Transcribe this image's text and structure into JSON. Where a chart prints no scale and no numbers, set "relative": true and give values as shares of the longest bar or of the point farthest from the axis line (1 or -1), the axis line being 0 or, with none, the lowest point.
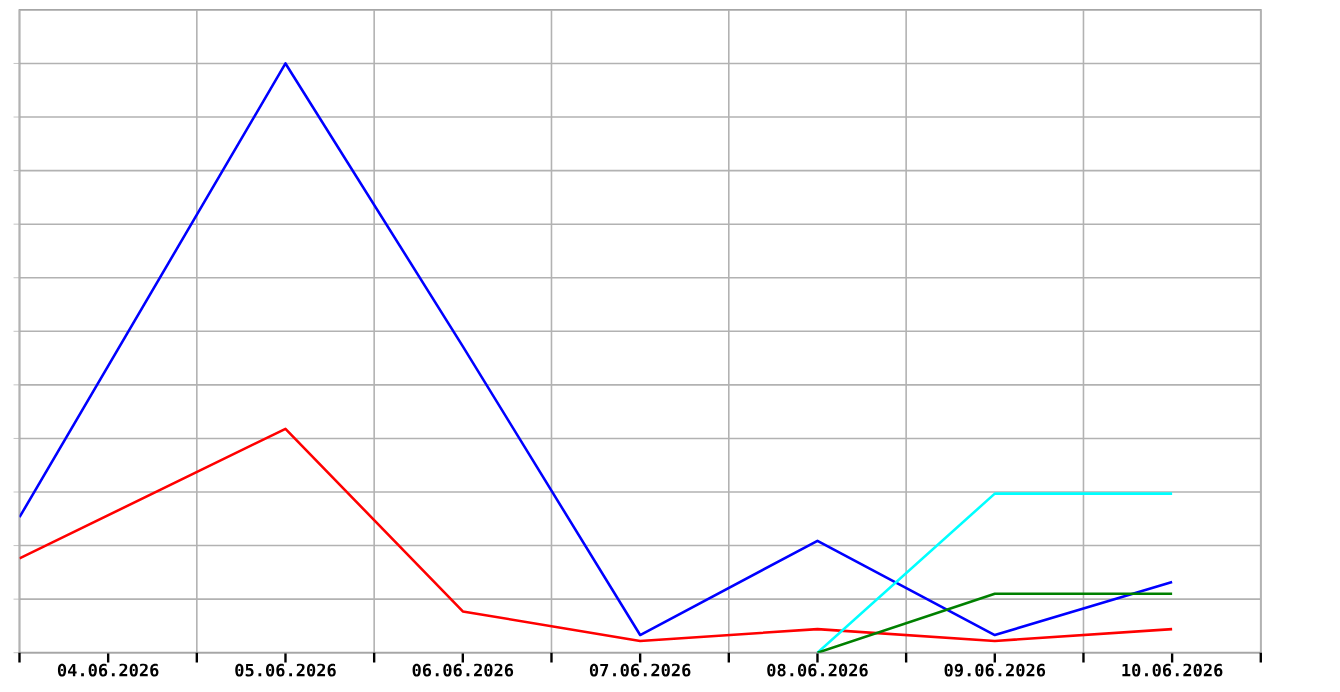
{
  "chart_data": {
    "type": "line",
    "relative": true,
    "grid": true,
    "xlim": [
      "2026-06-03T12:00",
      "2026-06-10T12:00"
    ],
    "xticks": [
      {
        "value": "2026-06-03T12:00",
        "label": null
      },
      {
        "value": "2026-06-04",
        "label": "04.06.2026"
      },
      {
        "value": "2026-06-04T12:00",
        "label": null
      },
      {
        "value": "2026-06-05",
        "label": "05.06.2026"
      },
      {
        "value": "2026-06-05T12:00",
        "label": null
      },
      {
        "value": "2026-06-06",
        "label": "06.06.2026"
      },
      {
        "value": "2026-06-06T12:00",
        "label": null
      },
      {
        "value": "2026-06-07",
        "label": "07.06.2026"
      },
      {
        "value": "2026-06-07T12:00",
        "label": null
      },
      {
        "value": "2026-06-08",
        "label": "08.06.2026"
      },
      {
        "value": "2026-06-08T12:00",
        "label": null
      },
      {
        "value": "2026-06-09",
        "label": "09.06.2026"
      },
      {
        "value": "2026-06-09T12:00",
        "label": null
      },
      {
        "value": "2026-06-10",
        "label": "10.06.2026"
      },
      {
        "value": "2026-06-10T12:00",
        "label": null
      }
    ],
    "x": [
      "2026-06-03T12:00",
      "2026-06-05",
      "2026-06-06",
      "2026-06-07",
      "2026-06-08",
      "2026-06-09",
      "2026-06-10"
    ],
    "series": [
      {
        "color": "#0000ff",
        "values": [
          0.23,
          1,
          0.52,
          0.03,
          0.19,
          0.03,
          0.12
        ]
      },
      {
        "color": "#ff0000",
        "values": [
          0.16,
          0.38,
          0.07,
          0.02,
          0.04,
          0.02,
          0.04
        ]
      },
      {
        "color": "#00ffff",
        "x": [
          "2026-06-08",
          "2026-06-09",
          "2026-06-10"
        ],
        "values": [
          0,
          0.27,
          0.27
        ]
      },
      {
        "color": "#008000",
        "x": [
          "2026-06-08",
          "2026-06-09",
          "2026-06-10"
        ],
        "values": [
          0,
          0.1,
          0.1
        ]
      }
    ]
  }
}
